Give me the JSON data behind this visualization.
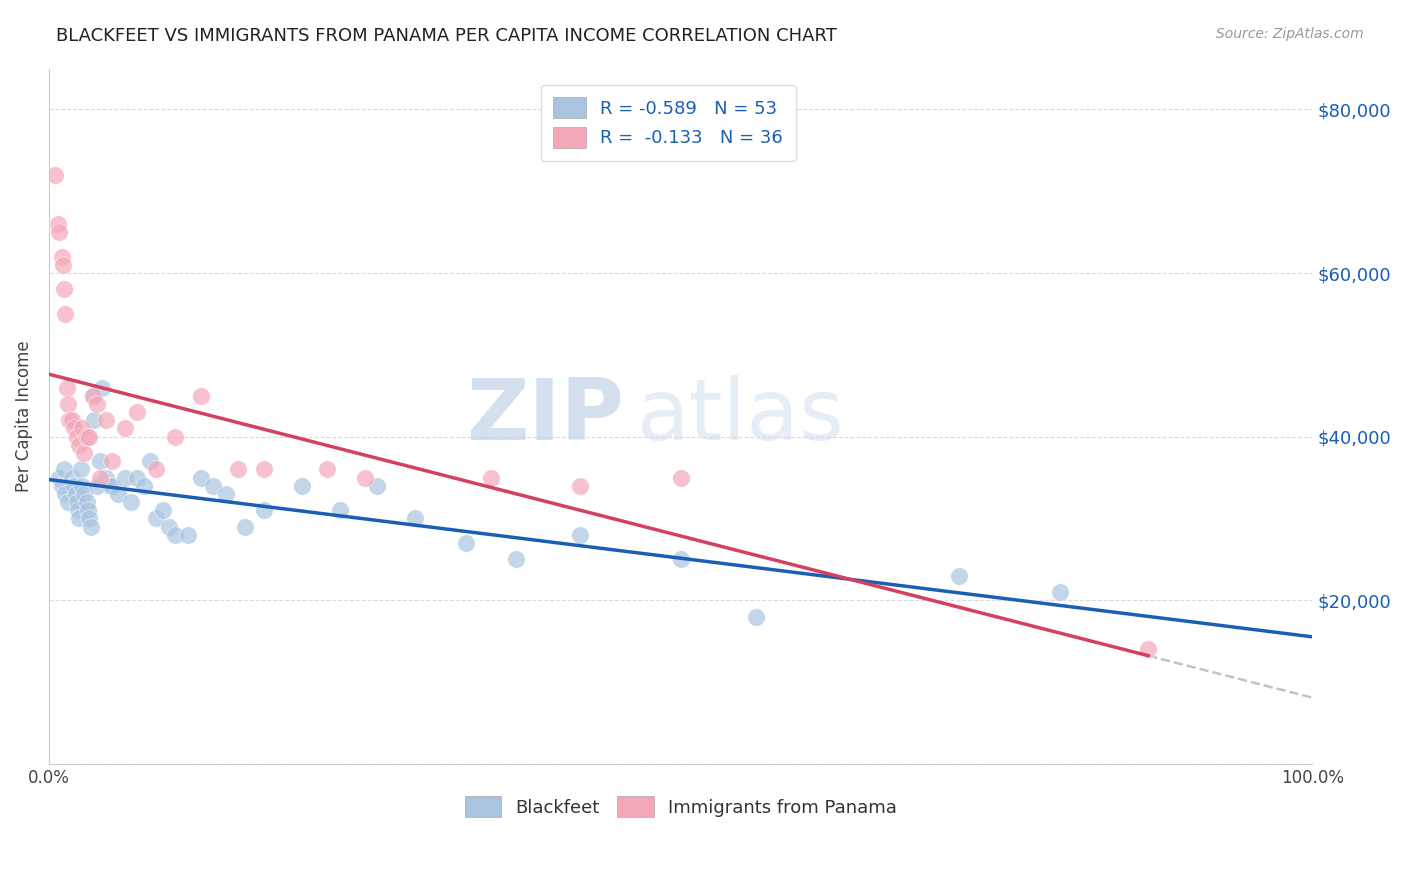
{
  "title": "BLACKFEET VS IMMIGRANTS FROM PANAMA PER CAPITA INCOME CORRELATION CHART",
  "source": "Source: ZipAtlas.com",
  "ylabel": "Per Capita Income",
  "xlim": [
    0.0,
    1.0
  ],
  "ylim": [
    0,
    85000
  ],
  "xticks": [
    0.0,
    0.1,
    0.2,
    0.3,
    0.4,
    0.5,
    0.6,
    0.7,
    0.8,
    0.9,
    1.0
  ],
  "xticklabels": [
    "0.0%",
    "",
    "",
    "",
    "",
    "",
    "",
    "",
    "",
    "",
    "100.0%"
  ],
  "yticks": [
    0,
    20000,
    40000,
    60000,
    80000
  ],
  "yticklabels_right": [
    "",
    "$20,000",
    "$40,000",
    "$60,000",
    "$80,000"
  ],
  "r_blackfeet": -0.589,
  "n_blackfeet": 53,
  "r_panama": -0.133,
  "n_panama": 36,
  "blackfeet_color": "#a8c4e0",
  "panama_color": "#f4a7b9",
  "blackfeet_line_color": "#1a5fb4",
  "panama_line_color": "#d44060",
  "trend_dash_color": "#c0b8cc",
  "watermark_zip": "ZIP",
  "watermark_atlas": "atlas",
  "legend_label_blackfeet": "Blackfeet",
  "legend_label_panama": "Immigrants from Panama",
  "blackfeet_x": [
    0.008,
    0.01,
    0.012,
    0.013,
    0.015,
    0.018,
    0.02,
    0.021,
    0.022,
    0.023,
    0.024,
    0.025,
    0.026,
    0.028,
    0.03,
    0.031,
    0.032,
    0.033,
    0.035,
    0.036,
    0.038,
    0.04,
    0.042,
    0.045,
    0.048,
    0.05,
    0.055,
    0.06,
    0.065,
    0.07,
    0.075,
    0.08,
    0.085,
    0.09,
    0.095,
    0.1,
    0.11,
    0.12,
    0.13,
    0.14,
    0.155,
    0.17,
    0.2,
    0.23,
    0.26,
    0.29,
    0.33,
    0.37,
    0.42,
    0.5,
    0.56,
    0.72,
    0.8
  ],
  "blackfeet_y": [
    35000,
    34000,
    36000,
    33000,
    32000,
    35000,
    34000,
    33000,
    32000,
    31000,
    30000,
    36000,
    34000,
    33000,
    32000,
    31000,
    30000,
    29000,
    45000,
    42000,
    34000,
    37000,
    46000,
    35000,
    34000,
    34000,
    33000,
    35000,
    32000,
    35000,
    34000,
    37000,
    30000,
    31000,
    29000,
    28000,
    28000,
    35000,
    34000,
    33000,
    29000,
    31000,
    34000,
    31000,
    34000,
    30000,
    27000,
    25000,
    28000,
    25000,
    18000,
    23000,
    21000
  ],
  "panama_x": [
    0.005,
    0.007,
    0.008,
    0.01,
    0.011,
    0.012,
    0.013,
    0.014,
    0.015,
    0.016,
    0.018,
    0.02,
    0.022,
    0.024,
    0.026,
    0.028,
    0.03,
    0.032,
    0.035,
    0.038,
    0.04,
    0.045,
    0.05,
    0.06,
    0.07,
    0.085,
    0.1,
    0.12,
    0.15,
    0.17,
    0.22,
    0.25,
    0.35,
    0.42,
    0.5,
    0.87
  ],
  "panama_y": [
    72000,
    66000,
    65000,
    62000,
    61000,
    58000,
    55000,
    46000,
    44000,
    42000,
    42000,
    41000,
    40000,
    39000,
    41000,
    38000,
    40000,
    40000,
    45000,
    44000,
    35000,
    42000,
    37000,
    41000,
    43000,
    36000,
    40000,
    45000,
    36000,
    36000,
    36000,
    35000,
    35000,
    34000,
    35000,
    14000
  ]
}
